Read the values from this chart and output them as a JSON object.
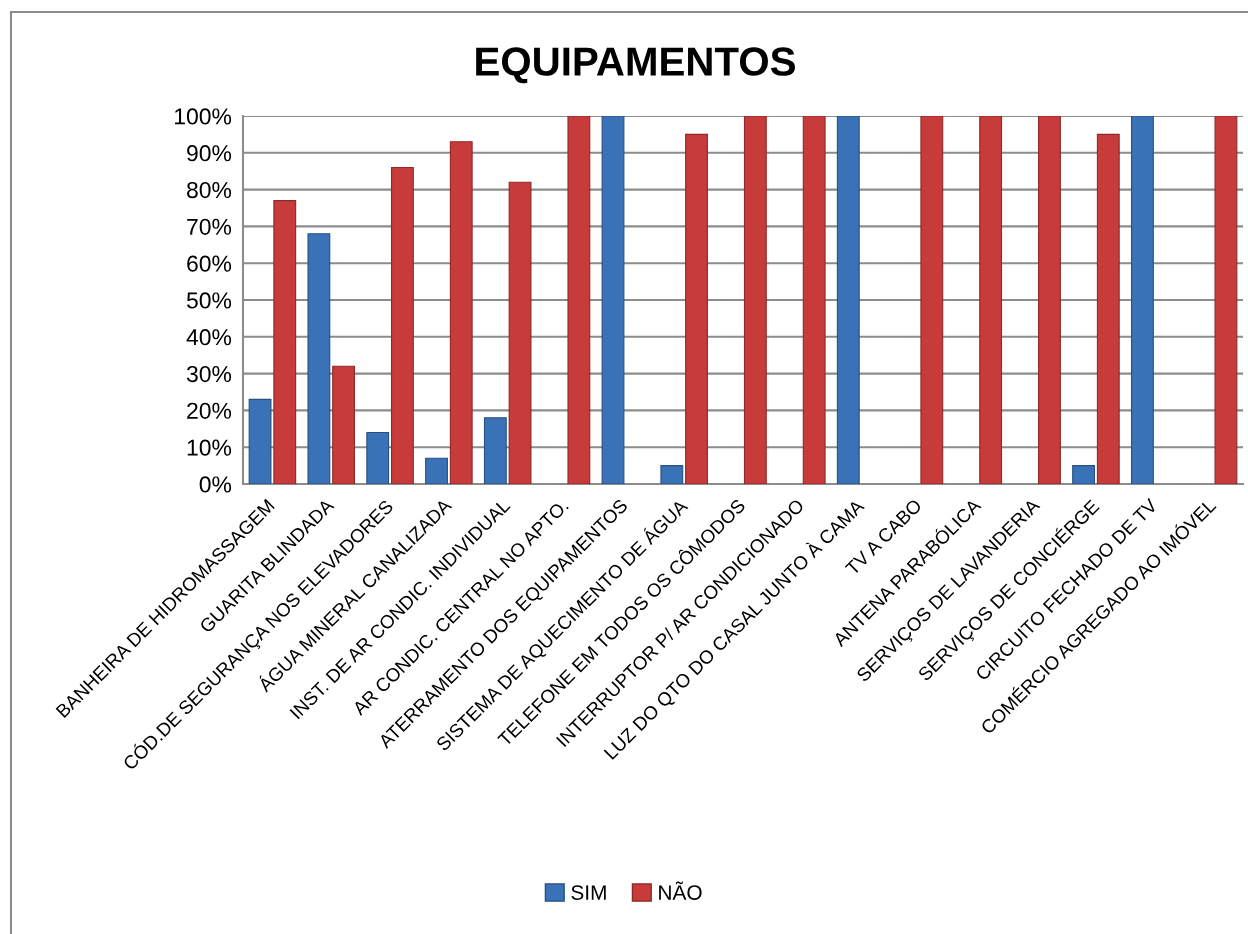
{
  "chart_data": {
    "type": "bar",
    "title": "EQUIPAMENTOS",
    "categories": [
      "BANHEIRA DE HIDROMASSAGEM",
      "GUARITA BLINDADA",
      "CÓD.DE SEGURANÇA NOS ELEVADORES",
      "ÁGUA MINERAL CANALIZADA",
      "INST. DE AR CONDIC. INDIVIDUAL",
      "AR CONDIC. CENTRAL NO APTO.",
      "ATERRAMENTO DOS EQUIPAMENTOS",
      "SISTEMA DE AQUECIMENTO DE ÁGUA",
      "TELEFONE EM TODOS OS CÔMODOS",
      "INTERRUPTOR P/ AR CONDICIONADO",
      "LUZ DO QTO DO CASAL JUNTO À CAMA",
      "TV A CABO",
      "ANTENA PARABÓLICA",
      "SERVIÇOS DE LAVANDERIA",
      "SERVIÇOS DE CONCIÉRGE",
      "CIRCUITO FECHADO DE TV",
      "COMÉRCIO AGREGADO AO IMÓVEL"
    ],
    "series": [
      {
        "name": "SIM",
        "color": "#3a72b8",
        "values": [
          23,
          68,
          14,
          7,
          18,
          0,
          100,
          5,
          0,
          0,
          100,
          0,
          0,
          0,
          5,
          100,
          0
        ]
      },
      {
        "name": "NÃO",
        "color": "#c83b3b",
        "values": [
          77,
          32,
          86,
          93,
          82,
          100,
          0,
          95,
          100,
          100,
          0,
          100,
          100,
          100,
          95,
          0,
          100
        ]
      }
    ],
    "ylim": [
      0,
      100
    ],
    "yticks": [
      {
        "value": 0,
        "label": "0%"
      },
      {
        "value": 10,
        "label": "10%"
      },
      {
        "value": 20,
        "label": "20%"
      },
      {
        "value": 30,
        "label": "30%"
      },
      {
        "value": 40,
        "label": "40%"
      },
      {
        "value": 50,
        "label": "50%"
      },
      {
        "value": 60,
        "label": "60%"
      },
      {
        "value": 70,
        "label": "70%"
      },
      {
        "value": 80,
        "label": "80%"
      },
      {
        "value": 90,
        "label": "90%"
      },
      {
        "value": 100,
        "label": "100%"
      }
    ],
    "grid": "y",
    "legend": "bottom"
  }
}
